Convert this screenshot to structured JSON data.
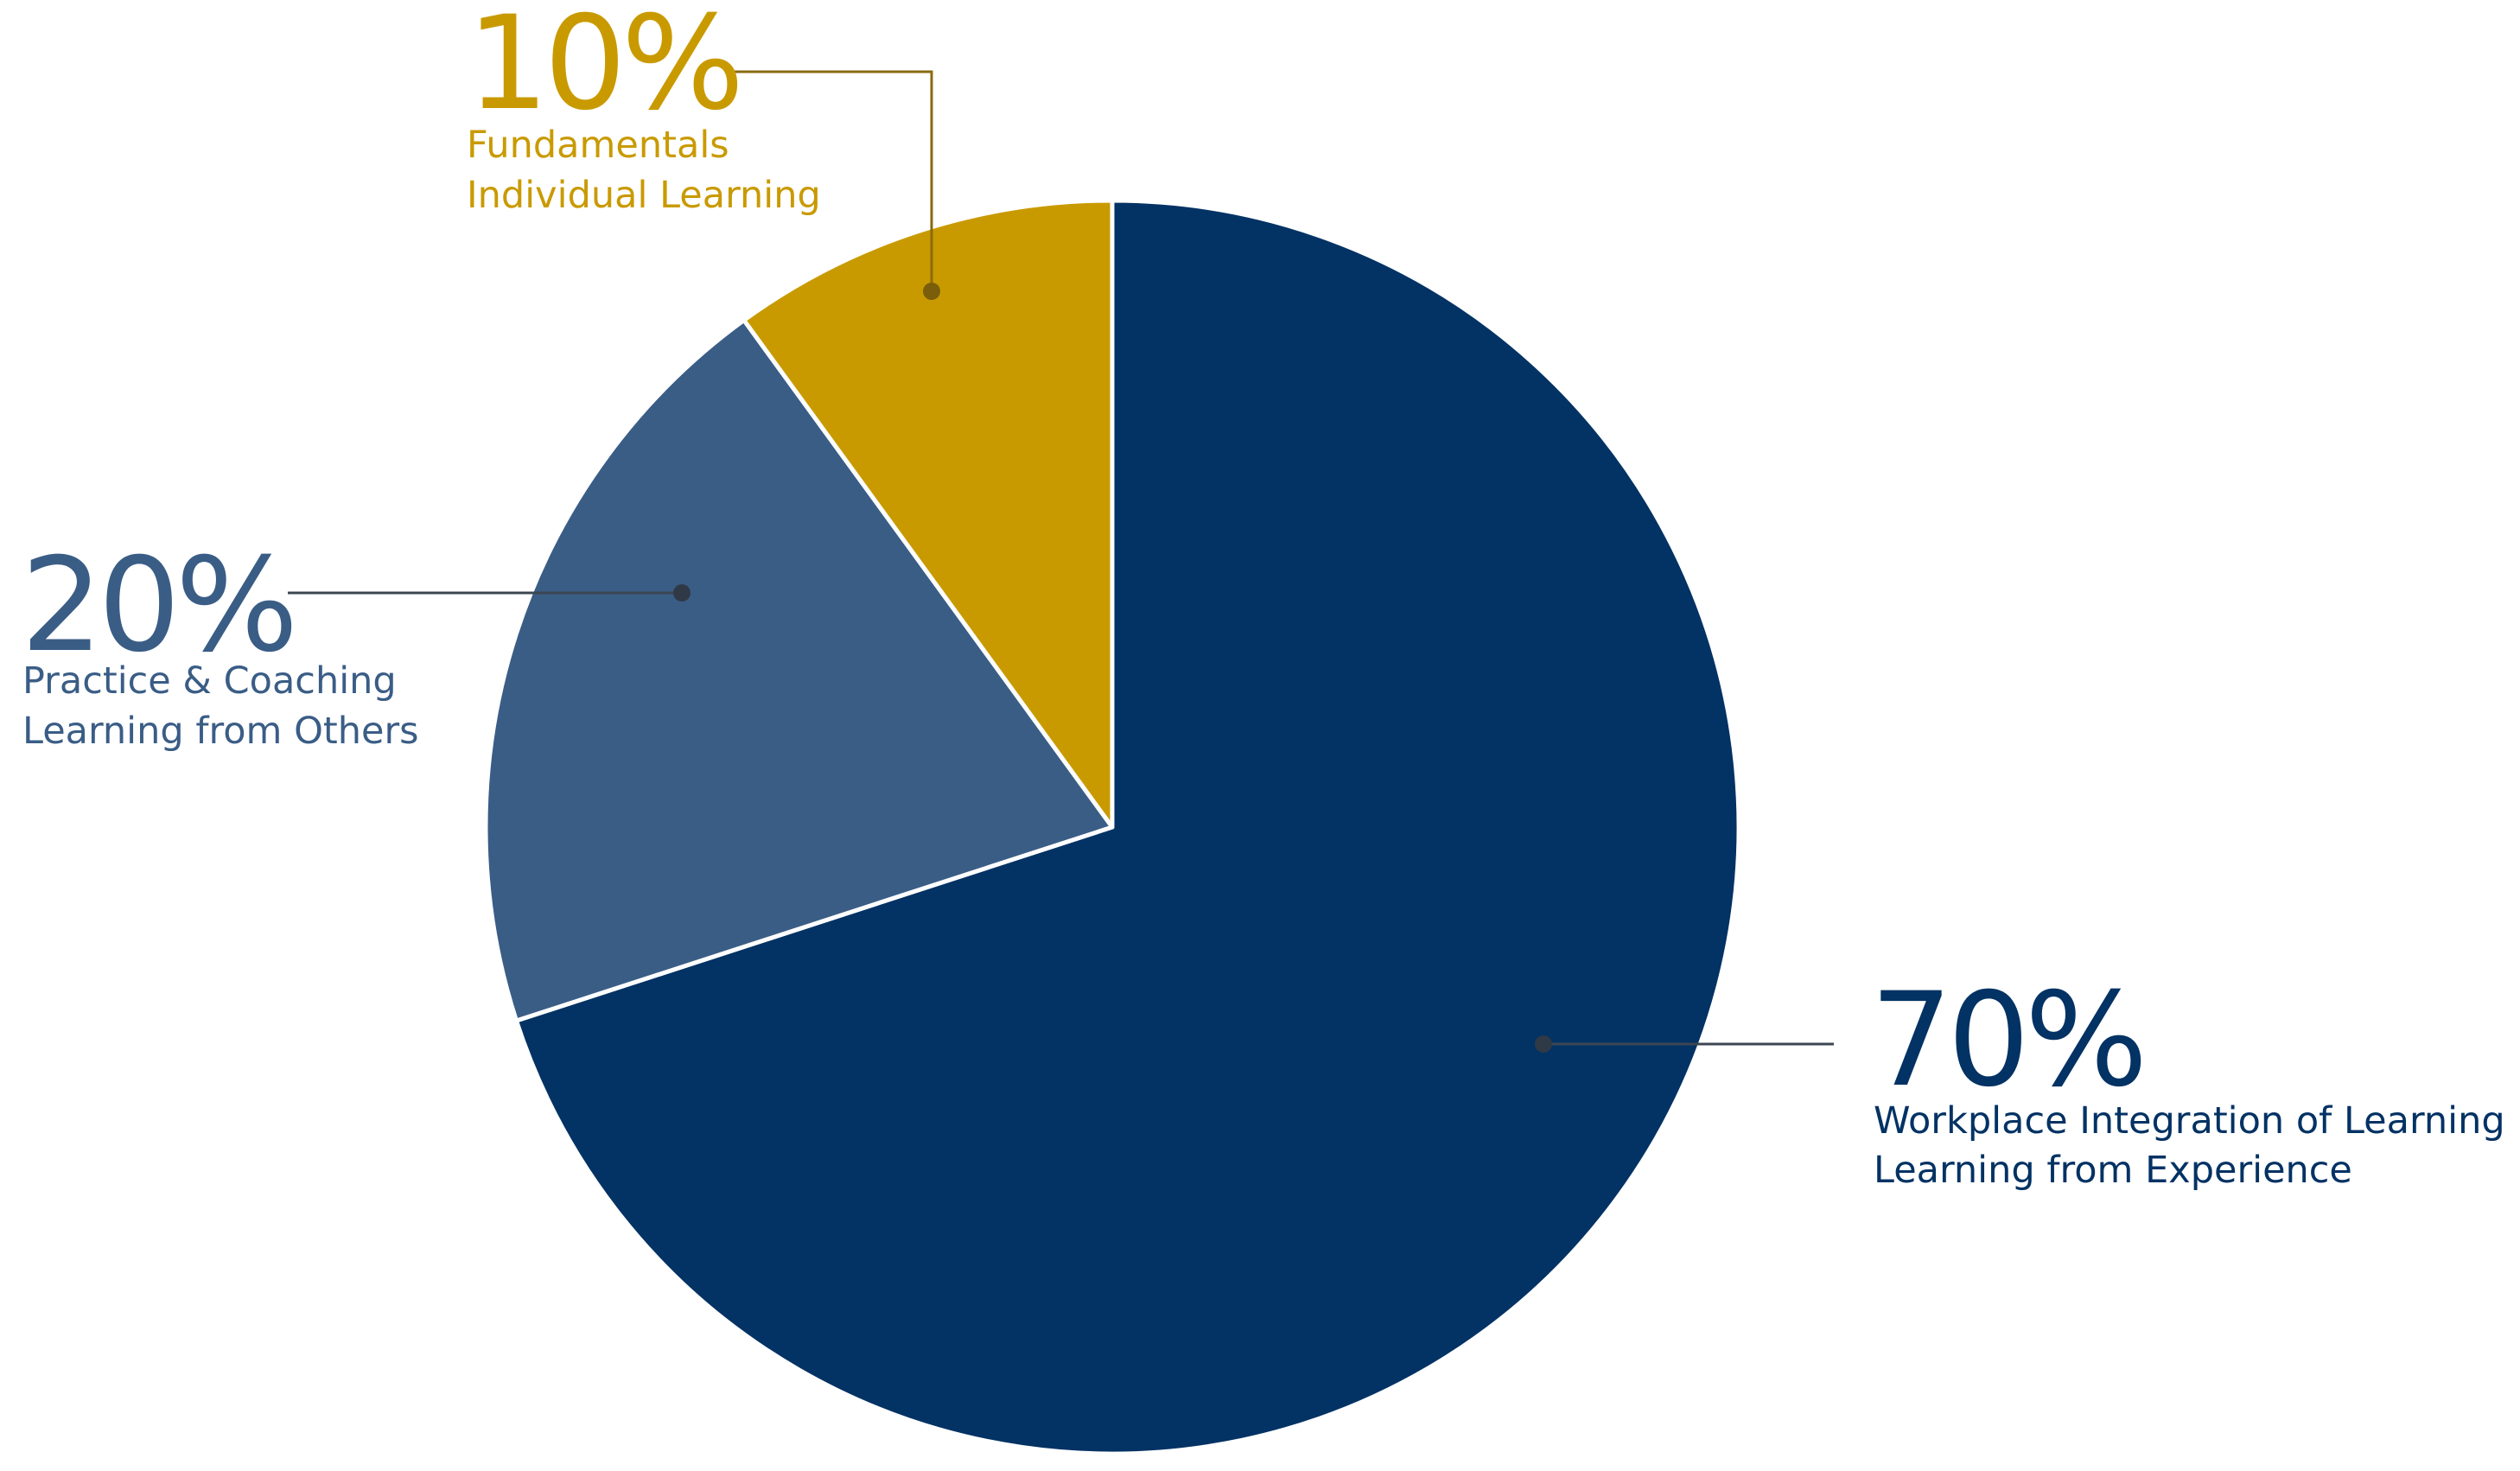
{
  "chart_data": {
    "type": "pie",
    "slices": [
      {
        "value": 70,
        "percent_label": "70%",
        "line1": "Workplace Integration of Learning",
        "line2": "Learning from Experience",
        "color": "#033264"
      },
      {
        "value": 20,
        "percent_label": "20%",
        "line1": "Practice & Coaching",
        "line2": "Learning from Others",
        "color": "#3a5d86"
      },
      {
        "value": 10,
        "percent_label": "10%",
        "line1": "Fundamentals",
        "line2": "Individual Learning",
        "color": "#c99a00"
      }
    ],
    "start_direction": "12 o'clock, clockwise",
    "slice_border_color": "#ffffff",
    "leader_line_color": "#3c4652"
  }
}
